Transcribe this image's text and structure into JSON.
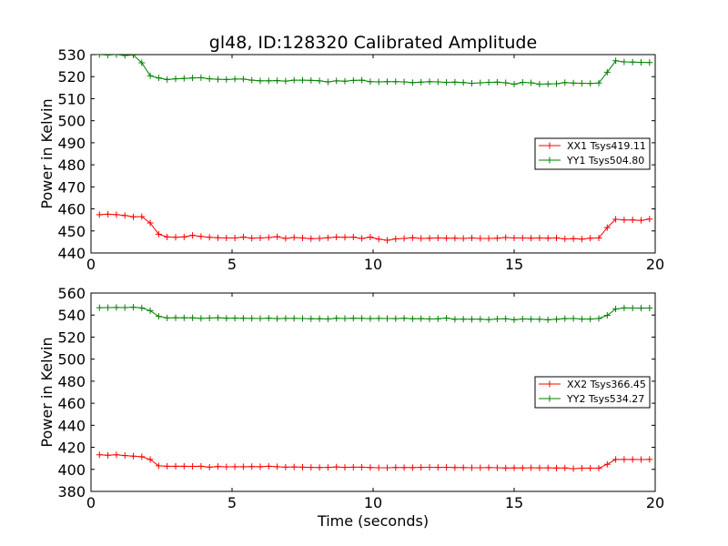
{
  "chart_data": {
    "title": "gl48, ID:128320 Calibrated Amplitude",
    "panels": [
      {
        "type": "line",
        "title": "gl48, ID:128320 Calibrated Amplitude",
        "xlabel": "",
        "ylabel": "Power in Kelvin",
        "xlim": [
          0,
          20
        ],
        "ylim": [
          440,
          530
        ],
        "xticks": [
          "0",
          "5",
          "10",
          "15",
          "20"
        ],
        "yticks": [
          "440",
          "450",
          "460",
          "470",
          "480",
          "490",
          "500",
          "510",
          "520",
          "530"
        ],
        "grid": false,
        "legend_position": "center-right",
        "x": [
          0.3,
          0.6,
          0.9,
          1.2,
          1.5,
          1.8,
          2.1,
          2.4,
          2.7,
          3.0,
          3.3,
          3.6,
          3.9,
          4.2,
          4.5,
          4.8,
          5.1,
          5.4,
          5.7,
          6.0,
          6.3,
          6.6,
          6.9,
          7.2,
          7.5,
          7.8,
          8.1,
          8.4,
          8.7,
          9.0,
          9.3,
          9.6,
          9.9,
          10.2,
          10.5,
          10.8,
          11.1,
          11.4,
          11.7,
          12.0,
          12.3,
          12.6,
          12.9,
          13.2,
          13.5,
          13.8,
          14.1,
          14.4,
          14.7,
          15.0,
          15.3,
          15.6,
          15.9,
          16.2,
          16.5,
          16.8,
          17.1,
          17.4,
          17.7,
          18.0,
          18.3,
          18.6,
          18.9,
          19.2,
          19.5,
          19.8
        ],
        "series": [
          {
            "name": "XX1 Tsys419.11",
            "color": "#ff0000",
            "values": [
              457.4,
              457.6,
              457.4,
              457.0,
              456.4,
              456.5,
              453.6,
              448.5,
              447.3,
              447.1,
              447.3,
              448.0,
              447.5,
              447.1,
              446.9,
              446.8,
              446.8,
              447.2,
              446.7,
              446.8,
              447.0,
              447.4,
              446.6,
              447.0,
              446.8,
              446.5,
              446.6,
              446.9,
              447.2,
              447.1,
              447.2,
              446.6,
              447.2,
              446.3,
              445.8,
              446.4,
              446.6,
              446.9,
              446.6,
              446.7,
              446.8,
              446.7,
              446.7,
              446.6,
              446.8,
              446.6,
              446.6,
              446.7,
              447.0,
              446.8,
              446.8,
              446.7,
              446.8,
              446.7,
              446.8,
              446.4,
              446.5,
              446.3,
              446.7,
              446.8,
              451.5,
              455.3,
              455.0,
              455.0,
              454.8,
              455.4
            ]
          },
          {
            "name": "YY1 Tsys504.80",
            "color": "#008000",
            "values": [
              530.0,
              529.8,
              530.0,
              529.6,
              529.8,
              526.3,
              520.4,
              519.4,
              518.7,
              519.0,
              519.2,
              519.4,
              519.5,
              519.0,
              518.8,
              518.7,
              518.9,
              518.9,
              518.4,
              518.1,
              518.1,
              518.2,
              518.0,
              518.4,
              518.4,
              518.3,
              518.1,
              517.6,
              518.1,
              517.9,
              518.3,
              518.4,
              517.7,
              517.6,
              517.7,
              517.7,
              517.6,
              517.3,
              517.5,
              517.7,
              517.6,
              517.4,
              517.5,
              517.3,
              517.0,
              517.2,
              517.4,
              517.5,
              517.2,
              516.6,
              517.4,
              517.2,
              516.6,
              516.7,
              516.8,
              517.3,
              517.1,
              517.0,
              516.9,
              517.1,
              522.0,
              527.2,
              526.7,
              526.6,
              526.5,
              526.4
            ]
          }
        ]
      },
      {
        "type": "line",
        "title": "",
        "xlabel": "Time (seconds)",
        "ylabel": "Power in Kelvin",
        "xlim": [
          0,
          20
        ],
        "ylim": [
          380,
          560
        ],
        "xticks": [
          "0",
          "5",
          "10",
          "15",
          "20"
        ],
        "yticks": [
          "380",
          "400",
          "420",
          "440",
          "460",
          "480",
          "500",
          "520",
          "540",
          "560"
        ],
        "grid": false,
        "legend_position": "center-right",
        "x": [
          0.3,
          0.6,
          0.9,
          1.2,
          1.5,
          1.8,
          2.1,
          2.4,
          2.7,
          3.0,
          3.3,
          3.6,
          3.9,
          4.2,
          4.5,
          4.8,
          5.1,
          5.4,
          5.7,
          6.0,
          6.3,
          6.6,
          6.9,
          7.2,
          7.5,
          7.8,
          8.1,
          8.4,
          8.7,
          9.0,
          9.3,
          9.6,
          9.9,
          10.2,
          10.5,
          10.8,
          11.1,
          11.4,
          11.7,
          12.0,
          12.3,
          12.6,
          12.9,
          13.2,
          13.5,
          13.8,
          14.1,
          14.4,
          14.7,
          15.0,
          15.3,
          15.6,
          15.9,
          16.2,
          16.5,
          16.8,
          17.1,
          17.4,
          17.7,
          18.0,
          18.3,
          18.6,
          18.9,
          19.2,
          19.5,
          19.8
        ],
        "series": [
          {
            "name": "XX2 Tsys366.45",
            "color": "#ff0000",
            "values": [
              413.2,
              412.8,
              413.2,
              412.5,
              412.0,
              411.5,
              409.0,
              403.2,
              402.8,
              402.8,
              402.8,
              402.7,
              402.8,
              402.0,
              402.6,
              402.3,
              402.4,
              402.4,
              402.5,
              402.4,
              402.8,
              402.4,
              402.0,
              402.2,
              402.0,
              401.8,
              401.7,
              401.8,
              402.2,
              401.8,
              402.0,
              402.0,
              401.7,
              401.5,
              401.5,
              401.7,
              401.6,
              401.6,
              401.8,
              401.9,
              401.8,
              401.9,
              401.6,
              401.6,
              401.5,
              401.5,
              401.6,
              401.5,
              401.2,
              401.4,
              401.3,
              401.5,
              401.4,
              401.4,
              401.2,
              401.3,
              400.6,
              401.1,
              401.1,
              401.1,
              404.6,
              409.0,
              409.0,
              409.0,
              408.9,
              409.0
            ]
          },
          {
            "name": "YY2 Tsys534.27",
            "color": "#008000",
            "values": [
              546.7,
              546.8,
              546.9,
              546.8,
              547.1,
              546.5,
              544.0,
              538.8,
              537.4,
              537.6,
              537.5,
              537.5,
              537.0,
              537.3,
              537.6,
              537.1,
              537.2,
              537.1,
              537.0,
              536.9,
              537.2,
              536.8,
              537.0,
              537.0,
              536.9,
              536.7,
              536.7,
              536.5,
              537.1,
              536.9,
              537.1,
              537.0,
              536.8,
              537.0,
              536.9,
              536.8,
              537.1,
              536.7,
              536.8,
              536.5,
              536.6,
              537.3,
              536.2,
              536.3,
              536.2,
              536.3,
              535.8,
              536.5,
              536.6,
              535.7,
              536.5,
              536.3,
              536.2,
              535.7,
              536.2,
              536.8,
              536.9,
              536.4,
              536.4,
              536.9,
              539.8,
              545.5,
              546.5,
              546.4,
              546.3,
              546.4
            ]
          }
        ]
      }
    ]
  }
}
